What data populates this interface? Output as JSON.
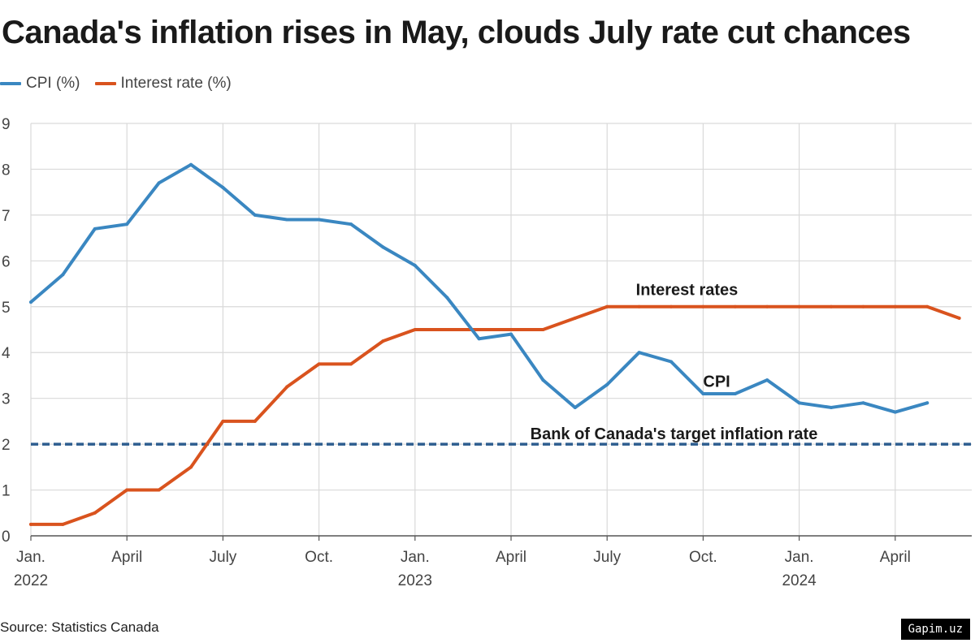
{
  "title": "Canada's inflation rises in May, clouds July rate cut chances",
  "source": "Source: Statistics Canada",
  "watermark": "Gapim.uz",
  "chart_data": {
    "type": "line",
    "title": "Canada's inflation rises in May, clouds July rate cut chances",
    "ylim": [
      0,
      9
    ],
    "yticks": [
      0,
      1,
      2,
      3,
      4,
      5,
      6,
      7,
      8,
      9
    ],
    "grid": true,
    "legend_position": "top-left",
    "x_ticks": [
      {
        "month": 0,
        "label": "Jan.",
        "year": "2022"
      },
      {
        "month": 3,
        "label": "April",
        "year": ""
      },
      {
        "month": 6,
        "label": "July",
        "year": ""
      },
      {
        "month": 9,
        "label": "Oct.",
        "year": ""
      },
      {
        "month": 12,
        "label": "Jan.",
        "year": "2023"
      },
      {
        "month": 15,
        "label": "April",
        "year": ""
      },
      {
        "month": 18,
        "label": "July",
        "year": ""
      },
      {
        "month": 21,
        "label": "Oct.",
        "year": ""
      },
      {
        "month": 24,
        "label": "Jan.",
        "year": "2024"
      },
      {
        "month": 27,
        "label": "April",
        "year": ""
      }
    ],
    "series": [
      {
        "name": "CPI (%)",
        "label": "CPI",
        "color": "#3a87c1",
        "x": [
          0,
          1,
          2,
          3,
          4,
          5,
          6,
          7,
          8,
          9,
          10,
          11,
          12,
          13,
          14,
          15,
          16,
          17,
          18,
          19,
          20,
          21,
          22,
          23,
          24,
          25,
          26,
          27,
          28
        ],
        "values": [
          5.1,
          5.7,
          6.7,
          6.8,
          7.7,
          8.1,
          7.6,
          7.0,
          6.9,
          6.9,
          6.8,
          6.3,
          5.9,
          5.2,
          4.3,
          4.4,
          3.4,
          2.8,
          3.3,
          4.0,
          3.8,
          3.1,
          3.1,
          3.4,
          2.9,
          2.8,
          2.9,
          2.7,
          2.9
        ]
      },
      {
        "name": "Interest rate (%)",
        "label": "Interest rates",
        "color": "#d9531e",
        "x": [
          0,
          1,
          2,
          3,
          4,
          5,
          6,
          7,
          8,
          9,
          10,
          11,
          12,
          13,
          14,
          15,
          16,
          17,
          18,
          19,
          20,
          21,
          22,
          23,
          24,
          25,
          26,
          27,
          28,
          29
        ],
        "values": [
          0.25,
          0.25,
          0.5,
          1.0,
          1.0,
          1.5,
          2.5,
          2.5,
          3.25,
          3.75,
          3.75,
          4.25,
          4.5,
          4.5,
          4.5,
          4.5,
          4.5,
          4.75,
          5.0,
          5.0,
          5.0,
          5.0,
          5.0,
          5.0,
          5.0,
          5.0,
          5.0,
          5.0,
          5.0,
          4.75
        ]
      }
    ],
    "reference_line": {
      "value": 2,
      "label": "Bank of Canada's target inflation rate",
      "color": "#2d5d8f",
      "style": "dashed"
    }
  }
}
